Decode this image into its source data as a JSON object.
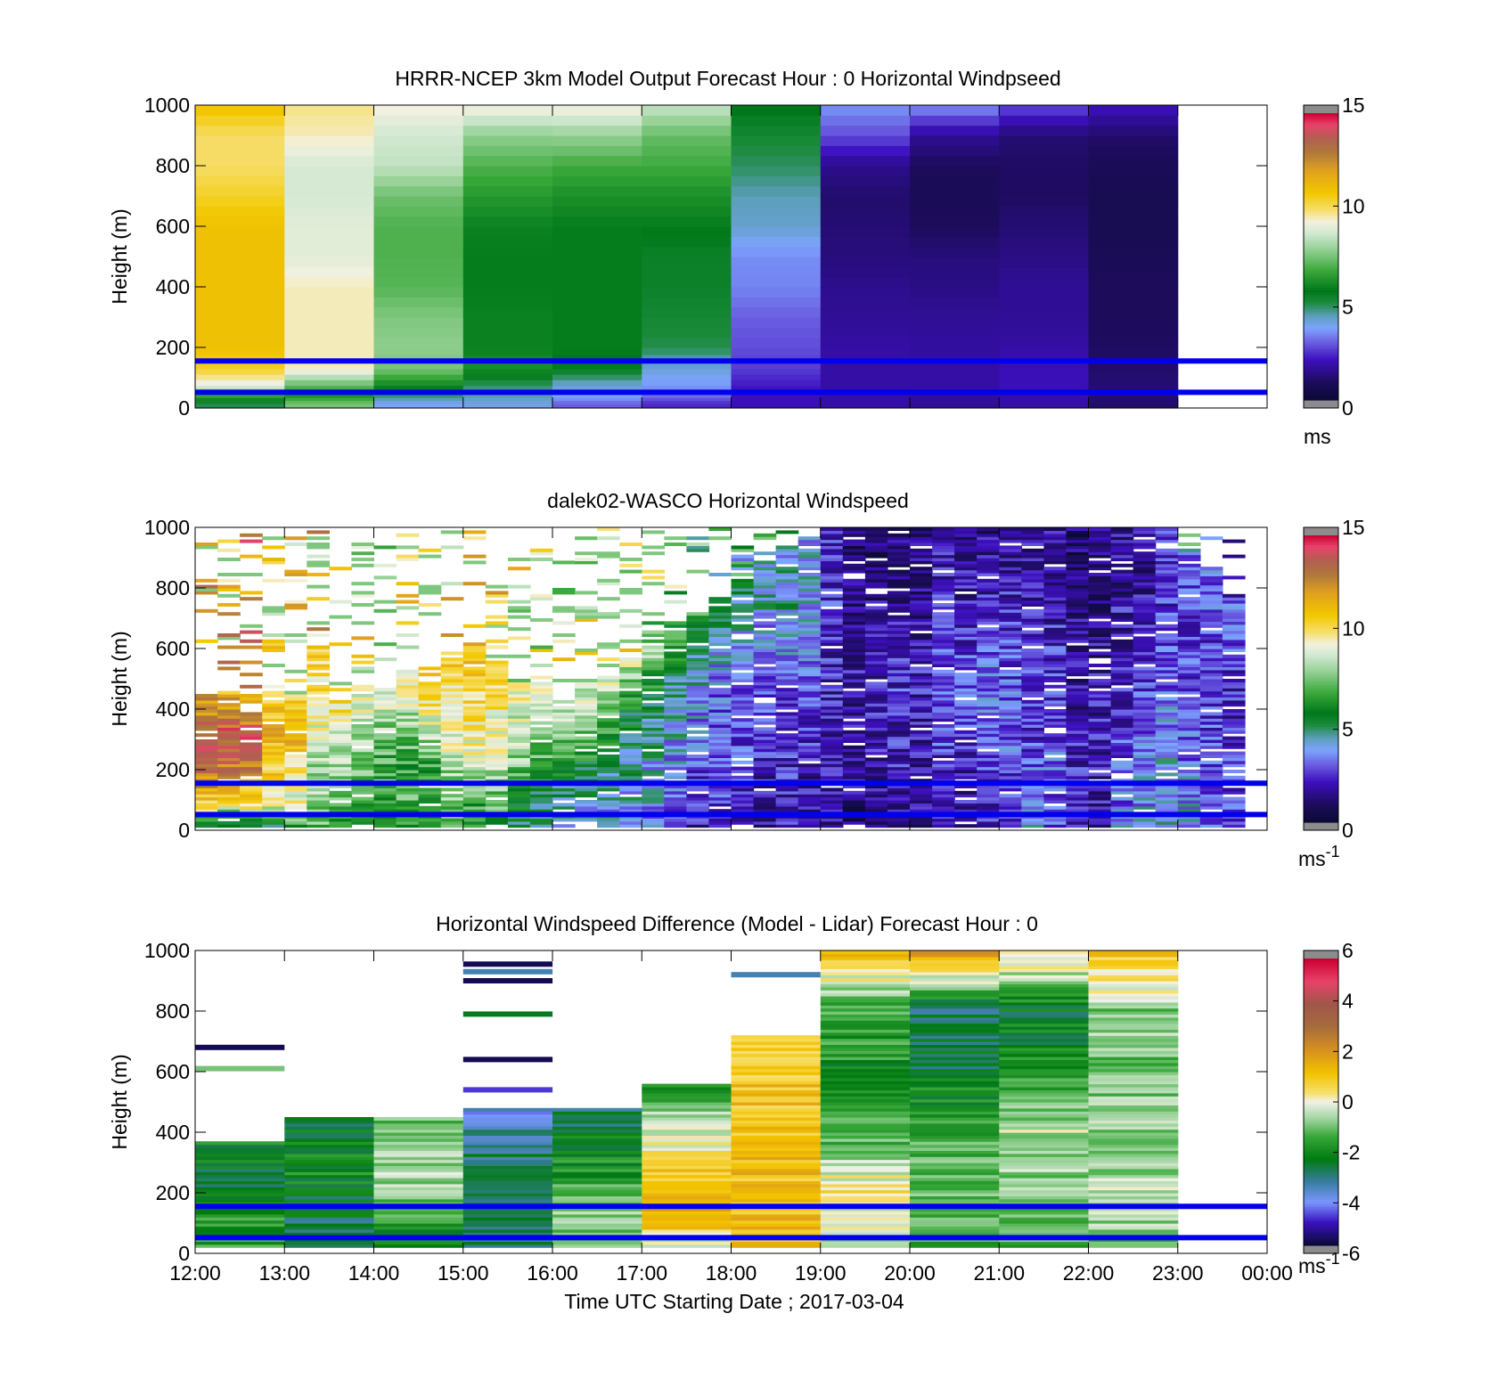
{
  "chart_data": [
    {
      "type": "heatmap",
      "title": "HRRR-NCEP 3km Model Output   Forecast Hour : 0 Horizontal Windpseed",
      "ylabel": "Height (m)",
      "xlabel": "",
      "ylim": [
        0,
        1000
      ],
      "yticks": [
        "0",
        "200",
        "400",
        "600",
        "800",
        "1000"
      ],
      "xlim_hours": [
        12,
        24
      ],
      "colorbar": {
        "min": 0,
        "max": 15,
        "ticks": [
          "0",
          "5",
          "10",
          "15"
        ],
        "unit": "ms",
        "unit_sup": ""
      },
      "levels": [
        15,
        45,
        75,
        130,
        200,
        300,
        400,
        500,
        600,
        700,
        800,
        900,
        1000
      ],
      "columns": [
        {
          "t": 12,
          "v": [
            5,
            7,
            9,
            10.5,
            11,
            11,
            11,
            11,
            11,
            10.5,
            10,
            10,
            11
          ]
        },
        {
          "t": 13,
          "v": [
            7.5,
            6,
            7.2,
            9.5,
            9.5,
            9.5,
            9.5,
            9,
            9,
            8.8,
            8.8,
            9.5,
            9.8
          ]
        },
        {
          "t": 14,
          "v": [
            3.8,
            5,
            6,
            7.5,
            7.8,
            7.6,
            7.1,
            7,
            7,
            7.4,
            8.5,
            8.7,
            9.4
          ]
        },
        {
          "t": 15,
          "v": [
            4,
            4.5,
            4.8,
            6.2,
            5.9,
            5.9,
            5.8,
            5.8,
            5.9,
            6.4,
            7,
            7.8,
            9.4
          ]
        },
        {
          "t": 16,
          "v": [
            3,
            4,
            4.1,
            5.6,
            5.8,
            5.8,
            5.8,
            5.8,
            5.8,
            6.2,
            6.8,
            7.9,
            9.4
          ]
        },
        {
          "t": 17,
          "v": [
            2.4,
            3.3,
            3.6,
            4.1,
            5,
            5.2,
            5.4,
            5.4,
            5.8,
            6.2,
            6.8,
            7.3,
            8.6
          ]
        },
        {
          "t": 18,
          "v": [
            2,
            2,
            2.2,
            2.6,
            2.8,
            3,
            3.4,
            3.5,
            4.2,
            4.4,
            4.9,
            5.2,
            5.8
          ]
        },
        {
          "t": 19,
          "v": [
            1.8,
            1.8,
            1.8,
            1.8,
            1.8,
            1.6,
            1.5,
            1.3,
            1.2,
            1.1,
            1.5,
            2.8,
            3.6
          ]
        },
        {
          "t": 20,
          "v": [
            1.6,
            1.7,
            1.8,
            1.8,
            1.7,
            1.6,
            1.4,
            1.3,
            0.9,
            0.8,
            0.9,
            1.6,
            3.6
          ]
        },
        {
          "t": 21,
          "v": [
            1.8,
            1.9,
            2,
            2,
            1.8,
            1.6,
            1.6,
            1.4,
            1.2,
            1,
            1,
            1.2,
            2.8
          ]
        },
        {
          "t": 22,
          "v": [
            1.1,
            1.2,
            1.2,
            1.1,
            1,
            0.9,
            0.9,
            0.8,
            0.7,
            0.7,
            0.8,
            1.1,
            2.1
          ]
        }
      ],
      "reference_lines_m": [
        155,
        52
      ],
      "reference_line_color": "#0000ee",
      "xticks": [
        "12:00",
        "13:00",
        "14:00",
        "15:00",
        "16:00",
        "17:00",
        "18:00",
        "19:00",
        "20:00",
        "21:00",
        "22:00",
        "23:00",
        "00:00"
      ],
      "show_xtick_labels": false
    },
    {
      "type": "heatmap",
      "title": "dalek02-WASCO  Horizontal Windspeed",
      "ylabel": "Height (m)",
      "xlabel": "",
      "ylim": [
        0,
        1000
      ],
      "yticks": [
        "0",
        "200",
        "400",
        "600",
        "800",
        "1000"
      ],
      "xlim_hours": [
        12,
        24
      ],
      "colorbar": {
        "min": 0,
        "max": 15,
        "ticks": [
          "0",
          "5",
          "10",
          "15"
        ],
        "unit": "ms",
        "unit_sup": "-1"
      },
      "time_step_hours": 0.25,
      "profiles": [
        {
          "t": 12.0,
          "v": [
            4,
            10,
            12,
            13,
            14,
            13,
            12
          ],
          "top": 430
        },
        {
          "t": 12.25,
          "v": [
            4,
            9,
            12,
            13,
            14,
            13,
            11
          ],
          "top": 450
        },
        {
          "t": 12.5,
          "v": [
            4,
            9.5,
            11,
            13,
            13.5,
            13,
            12
          ],
          "top": 440
        },
        {
          "t": 12.75,
          "v": [
            5,
            9,
            10,
            11,
            11.5,
            11,
            10.5
          ],
          "top": 450
        },
        {
          "t": 13.0,
          "v": [
            6,
            9,
            9.8,
            10,
            11,
            10.5,
            10
          ],
          "top": 440
        },
        {
          "t": 13.25,
          "v": [
            7,
            8,
            8,
            9,
            9.5,
            10,
            11
          ],
          "top": 600
        },
        {
          "t": 13.5,
          "v": [
            7,
            7,
            7.5,
            7.8,
            8.5,
            9.5,
            10
          ],
          "top": 420
        },
        {
          "t": 13.75,
          "v": [
            7,
            6.5,
            7,
            7.5,
            8,
            9,
            9.5
          ],
          "top": 470
        },
        {
          "t": 14.0,
          "v": [
            6,
            6.5,
            7,
            7,
            7.5,
            8.5,
            9
          ],
          "top": 460
        },
        {
          "t": 14.25,
          "v": [
            6.5,
            7,
            6.5,
            7,
            8,
            9,
            10
          ],
          "top": 520
        },
        {
          "t": 14.5,
          "v": [
            6,
            6,
            6,
            7,
            8.5,
            9.5,
            10
          ],
          "top": 480
        },
        {
          "t": 14.75,
          "v": [
            7,
            7.5,
            8,
            9,
            9.5,
            10,
            10.5
          ],
          "top": 560
        },
        {
          "t": 15.0,
          "v": [
            6,
            7,
            8.5,
            9.5,
            10,
            10.5,
            11
          ],
          "top": 600
        },
        {
          "t": 15.25,
          "v": [
            6,
            7.5,
            8,
            9,
            9.5,
            10,
            10
          ],
          "top": 560
        },
        {
          "t": 15.5,
          "v": [
            5,
            6,
            7,
            8,
            8.5,
            9,
            9.5
          ],
          "top": 480
        },
        {
          "t": 15.75,
          "v": [
            5,
            5,
            6,
            7,
            8,
            9,
            9
          ],
          "top": 480
        },
        {
          "t": 16.0,
          "v": [
            4,
            4.5,
            5,
            6,
            7,
            8,
            9
          ],
          "top": 420
        },
        {
          "t": 16.25,
          "v": [
            4,
            4,
            5,
            6,
            7,
            8.5,
            9
          ],
          "top": 480
        },
        {
          "t": 16.5,
          "v": [
            4,
            4,
            4.5,
            5.5,
            6.5,
            8,
            9
          ],
          "top": 500
        },
        {
          "t": 16.75,
          "v": [
            3.5,
            4,
            4.5,
            5,
            5.5,
            7,
            9
          ],
          "top": 560
        },
        {
          "t": 17.0,
          "v": [
            3,
            4,
            4,
            4.5,
            5,
            6,
            8
          ],
          "top": 580
        },
        {
          "t": 17.25,
          "v": [
            2.5,
            3,
            3.5,
            4,
            4.5,
            5.5,
            7
          ],
          "top": 660
        },
        {
          "t": 17.5,
          "v": [
            2,
            2.5,
            3,
            3.5,
            4,
            5,
            6
          ],
          "top": 700
        },
        {
          "t": 17.75,
          "v": [
            2,
            2.5,
            3,
            3,
            3.5,
            4.5,
            5.5
          ],
          "top": 760
        },
        {
          "t": 18.0,
          "v": [
            2,
            2.5,
            2.8,
            3,
            3.5,
            4,
            5
          ],
          "top": 820
        },
        {
          "t": 18.25,
          "v": [
            1.8,
            2,
            2.5,
            3,
            3.5,
            4,
            4.5
          ],
          "top": 880
        },
        {
          "t": 18.5,
          "v": [
            2,
            2.2,
            2.5,
            3,
            4,
            4.5,
            4
          ],
          "top": 920
        },
        {
          "t": 18.75,
          "v": [
            1.5,
            2,
            2.5,
            3,
            3.5,
            4,
            3.5
          ],
          "top": 960
        },
        {
          "t": 19.0,
          "v": [
            1.5,
            1.8,
            2,
            2.2,
            2.5,
            2.5,
            2.5
          ],
          "top": 1000
        },
        {
          "t": 19.25,
          "v": [
            1.3,
            1.5,
            1.8,
            2,
            1.5,
            1.2,
            1.2
          ],
          "top": 1000
        },
        {
          "t": 19.5,
          "v": [
            1.5,
            1.8,
            2,
            2.2,
            1.8,
            1.2,
            1
          ],
          "top": 1000
        },
        {
          "t": 19.75,
          "v": [
            1.5,
            2,
            2.2,
            2.5,
            2,
            1.5,
            1.2
          ],
          "top": 1000
        },
        {
          "t": 20.0,
          "v": [
            1.5,
            1.8,
            2,
            2.2,
            1.8,
            1.5,
            1.2
          ],
          "top": 1000
        },
        {
          "t": 20.25,
          "v": [
            2.5,
            2.5,
            2.8,
            3,
            2.5,
            2,
            1.8
          ],
          "top": 1000
        },
        {
          "t": 20.5,
          "v": [
            2,
            2,
            2.5,
            2.8,
            2.2,
            1.8,
            1.5
          ],
          "top": 1000
        },
        {
          "t": 20.75,
          "v": [
            2.2,
            2.5,
            3,
            3.2,
            2.5,
            2,
            1.5
          ],
          "top": 1000
        },
        {
          "t": 21.0,
          "v": [
            2.5,
            2.8,
            3,
            2.8,
            2.5,
            2,
            1.8
          ],
          "top": 1000
        },
        {
          "t": 21.25,
          "v": [
            4,
            3,
            2.5,
            2.5,
            2,
            1.8,
            1.5
          ],
          "top": 1000
        },
        {
          "t": 21.5,
          "v": [
            3,
            3,
            2.8,
            2.5,
            2.2,
            2,
            1.8
          ],
          "top": 1000
        },
        {
          "t": 21.75,
          "v": [
            2.5,
            2.2,
            2,
            1.8,
            1.5,
            1.2,
            1
          ],
          "top": 1000
        },
        {
          "t": 22.0,
          "v": [
            2,
            2,
            2,
            1.8,
            1.5,
            1.2,
            1.2
          ],
          "top": 1000
        },
        {
          "t": 22.25,
          "v": [
            3.5,
            3,
            2.5,
            2.2,
            2,
            1.8,
            1.5
          ],
          "top": 1000
        },
        {
          "t": 22.5,
          "v": [
            4,
            3.5,
            3,
            2.5,
            2,
            1.8,
            1.5
          ],
          "top": 1000
        },
        {
          "t": 22.75,
          "v": [
            4.5,
            4,
            3.5,
            3,
            2.5,
            2.5,
            3
          ],
          "top": 1000
        },
        {
          "t": 23.0,
          "v": [
            4,
            3.5,
            3,
            2.8,
            2.5,
            3,
            3.5
          ],
          "top": 920
        },
        {
          "t": 23.25,
          "v": [
            3.5,
            3,
            2.8,
            2.5,
            2.5,
            3,
            3.5
          ],
          "top": 860
        },
        {
          "t": 23.5,
          "v": [
            3,
            2.5,
            2.5,
            2.2,
            2.5,
            3,
            3
          ],
          "top": 760
        }
      ],
      "reference_lines_m": [
        155,
        52
      ],
      "reference_line_color": "#0000ee",
      "xticks": [
        "12:00",
        "13:00",
        "14:00",
        "15:00",
        "16:00",
        "17:00",
        "18:00",
        "19:00",
        "20:00",
        "21:00",
        "22:00",
        "23:00",
        "00:00"
      ],
      "show_xtick_labels": false
    },
    {
      "type": "heatmap",
      "title": "Horizontal Windspeed Difference (Model - Lidar) Forecast Hour : 0",
      "ylabel": "Height (m)",
      "xlabel": "Time UTC  Starting Date ; 2017-03-04",
      "ylim": [
        0,
        1000
      ],
      "yticks": [
        "0",
        "200",
        "400",
        "600",
        "800",
        "1000"
      ],
      "xlim_hours": [
        12,
        24
      ],
      "colorbar": {
        "min": -6,
        "max": 6,
        "ticks": [
          "-6",
          "-4",
          "-2",
          "0",
          "2",
          "4",
          "6"
        ],
        "unit": "ms",
        "unit_sup": "-1"
      },
      "columns": [
        {
          "t": 12,
          "top": 370,
          "v": [
            -1.5,
            -2,
            -1.8,
            -2.5,
            -2.5,
            -2
          ]
        },
        {
          "t": 13,
          "top": 450,
          "v": [
            -2.5,
            -2.8,
            -2.5,
            -2,
            -2.2,
            -3
          ]
        },
        {
          "t": 14,
          "top": 450,
          "v": [
            -2.5,
            -1.8,
            -1,
            -0.5,
            -0.8,
            -1.2
          ]
        },
        {
          "t": 15,
          "top": 480,
          "v": [
            -2.8,
            -2.8,
            -3,
            -3,
            -3.2,
            -4
          ]
        },
        {
          "t": 16,
          "top": 480,
          "v": [
            -1.5,
            -0.8,
            -1.5,
            -2,
            -2.5,
            -3
          ]
        },
        {
          "t": 17,
          "top": 560,
          "v": [
            -0.8,
            1.5,
            1.2,
            0.2,
            -0.8,
            -2
          ]
        },
        {
          "t": 18,
          "top": 720,
          "v": [
            1.2,
            1.2,
            1.2,
            1.2,
            1,
            0.8
          ]
        },
        {
          "t": 19,
          "top": 1000,
          "v": [
            -0.5,
            0.3,
            -1.5,
            -2,
            -1.5,
            1.5
          ]
        },
        {
          "t": 20,
          "top": 1000,
          "v": [
            -1.5,
            -1,
            -1.5,
            -2.5,
            -3,
            2.5
          ]
        },
        {
          "t": 21,
          "top": 1000,
          "v": [
            -1.5,
            -1,
            -0.5,
            -2,
            -2.5,
            1
          ]
        },
        {
          "t": 22,
          "top": 1000,
          "v": [
            -1,
            -0.5,
            -0.8,
            -1,
            -0.8,
            1
          ]
        }
      ],
      "isolated_lines": [
        {
          "t": 12,
          "h": 680,
          "v": -5.8
        },
        {
          "t": 12,
          "h": 610,
          "v": -1.0
        },
        {
          "t": 15,
          "h": 640,
          "v": -5.8
        },
        {
          "t": 15,
          "h": 540,
          "v": -4.8
        },
        {
          "t": 15,
          "h": 790,
          "v": -2.5
        },
        {
          "t": 15,
          "h": 900,
          "v": -5.8
        },
        {
          "t": 15,
          "h": 930,
          "v": -3.5
        },
        {
          "t": 15,
          "h": 955,
          "v": -5.8
        },
        {
          "t": 18,
          "h": 920,
          "v": -3.5
        }
      ],
      "reference_lines_m": [
        155,
        52
      ],
      "reference_line_color": "#0000ee",
      "xticks": [
        "12:00",
        "13:00",
        "14:00",
        "15:00",
        "16:00",
        "17:00",
        "18:00",
        "19:00",
        "20:00",
        "21:00",
        "22:00",
        "23:00",
        "00:00"
      ],
      "show_xtick_labels": true
    }
  ]
}
